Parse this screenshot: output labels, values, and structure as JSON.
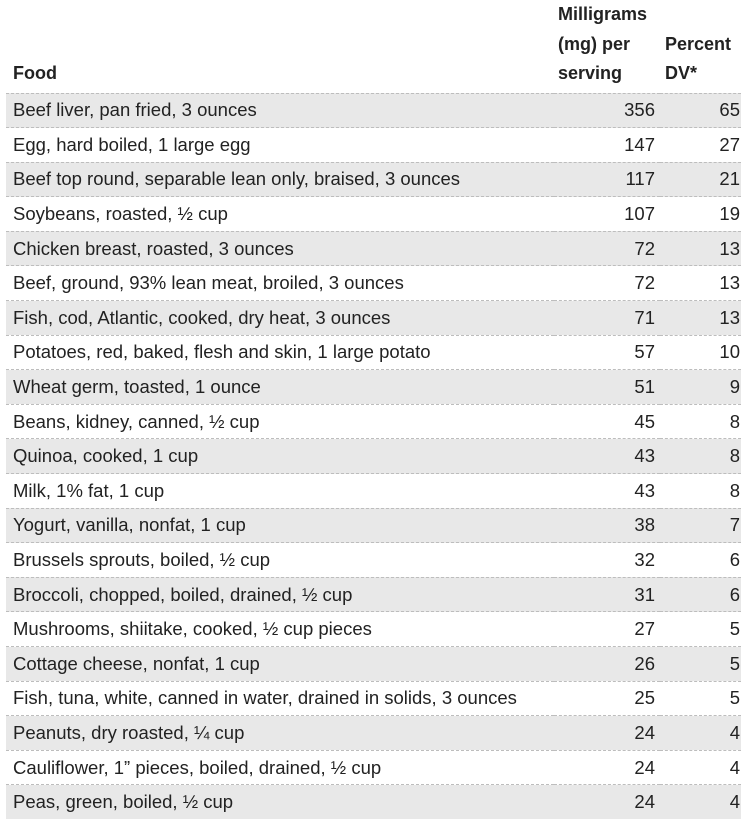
{
  "table": {
    "headers": {
      "food": "Food",
      "mg": "Milligrams (mg) per serving",
      "dv": "Percent DV*"
    },
    "rows": [
      {
        "food": "Beef liver, pan fried, 3 ounces",
        "mg": "356",
        "dv": "65"
      },
      {
        "food": "Egg, hard boiled, 1 large egg",
        "mg": "147",
        "dv": "27"
      },
      {
        "food": "Beef top round, separable lean only, braised, 3 ounces",
        "mg": "117",
        "dv": "21"
      },
      {
        "food": "Soybeans, roasted, ½ cup",
        "mg": "107",
        "dv": "19"
      },
      {
        "food": "Chicken breast, roasted, 3 ounces",
        "mg": "72",
        "dv": "13"
      },
      {
        "food": "Beef, ground, 93% lean meat, broiled, 3 ounces",
        "mg": "72",
        "dv": "13"
      },
      {
        "food": "Fish, cod, Atlantic, cooked, dry heat, 3 ounces",
        "mg": "71",
        "dv": "13"
      },
      {
        "food": "Potatoes, red, baked, flesh and skin, 1 large potato",
        "mg": "57",
        "dv": "10"
      },
      {
        "food": "Wheat germ, toasted, 1 ounce",
        "mg": "51",
        "dv": "9"
      },
      {
        "food": "Beans, kidney, canned, ½ cup",
        "mg": "45",
        "dv": "8"
      },
      {
        "food": "Quinoa, cooked, 1 cup",
        "mg": "43",
        "dv": "8"
      },
      {
        "food": "Milk, 1% fat, 1 cup",
        "mg": "43",
        "dv": "8"
      },
      {
        "food": "Yogurt, vanilla, nonfat, 1 cup",
        "mg": "38",
        "dv": "7"
      },
      {
        "food": "Brussels sprouts, boiled, ½ cup",
        "mg": "32",
        "dv": "6"
      },
      {
        "food": "Broccoli, chopped, boiled, drained, ½ cup",
        "mg": "31",
        "dv": "6"
      },
      {
        "food": "Mushrooms, shiitake, cooked, ½ cup pieces",
        "mg": "27",
        "dv": "5"
      },
      {
        "food": "Cottage cheese, nonfat, 1 cup",
        "mg": "26",
        "dv": "5"
      },
      {
        "food": "Fish, tuna, white, canned in water, drained in solids, 3 ounces",
        "mg": "25",
        "dv": "5"
      },
      {
        "food": "Peanuts, dry roasted, ¼ cup",
        "mg": "24",
        "dv": "4"
      },
      {
        "food": "Cauliflower, 1” pieces, boiled, drained, ½ cup",
        "mg": "24",
        "dv": "4"
      },
      {
        "food": "Peas, green, boiled, ½ cup",
        "mg": "24",
        "dv": "4"
      }
    ]
  }
}
